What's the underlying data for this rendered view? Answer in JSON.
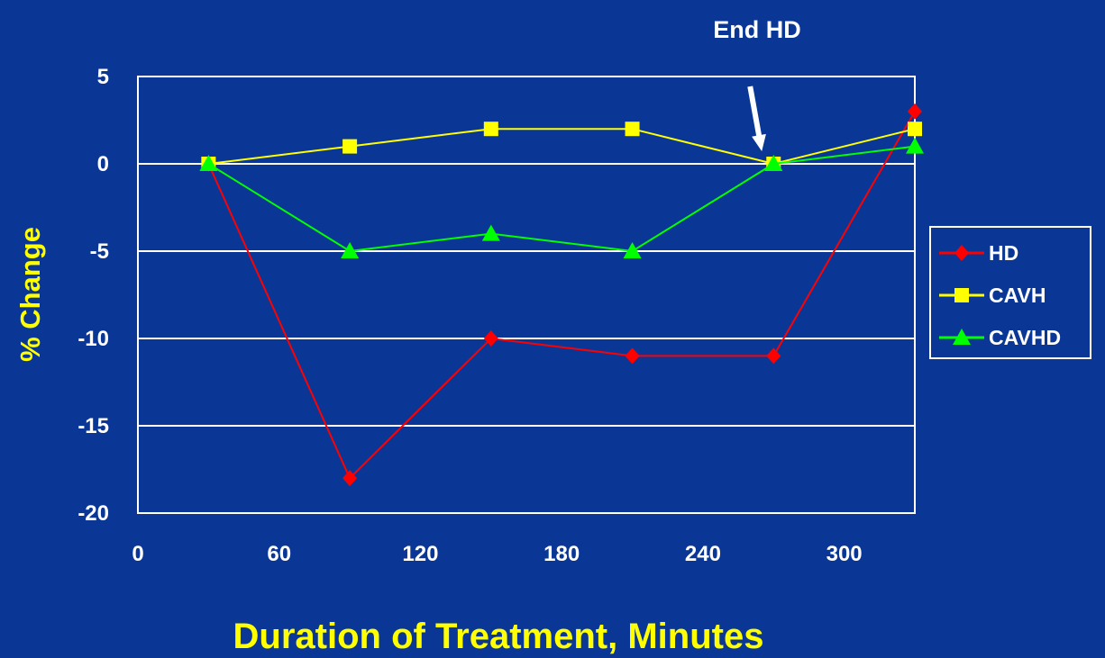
{
  "chart_data": {
    "type": "line",
    "xlabel": "Duration of Treatment, Minutes",
    "ylabel": "% Change",
    "xlim": [
      0,
      330
    ],
    "ylim": [
      -20,
      5
    ],
    "x_ticks": [
      0,
      60,
      120,
      180,
      240,
      300
    ],
    "y_ticks": [
      5,
      0,
      -5,
      -10,
      -15,
      -20
    ],
    "grid": "horizontal",
    "legend_position": "right",
    "annotation": {
      "text": "End HD",
      "points_to_x": 265
    },
    "series": [
      {
        "name": "HD",
        "color": "#ff0000",
        "marker": "diamond",
        "x": [
          30,
          90,
          150,
          210,
          270,
          330
        ],
        "values": [
          0,
          -18,
          -10,
          -11,
          -11,
          3
        ]
      },
      {
        "name": "CAVH",
        "color": "#ffff00",
        "marker": "square",
        "x": [
          30,
          90,
          150,
          210,
          270,
          330
        ],
        "values": [
          0,
          1,
          2,
          2,
          0,
          2
        ]
      },
      {
        "name": "CAVHD",
        "color": "#00ff00",
        "marker": "triangle",
        "x": [
          30,
          90,
          150,
          210,
          270,
          330
        ],
        "values": [
          0,
          -5,
          -4,
          -5,
          0,
          1
        ]
      }
    ]
  }
}
